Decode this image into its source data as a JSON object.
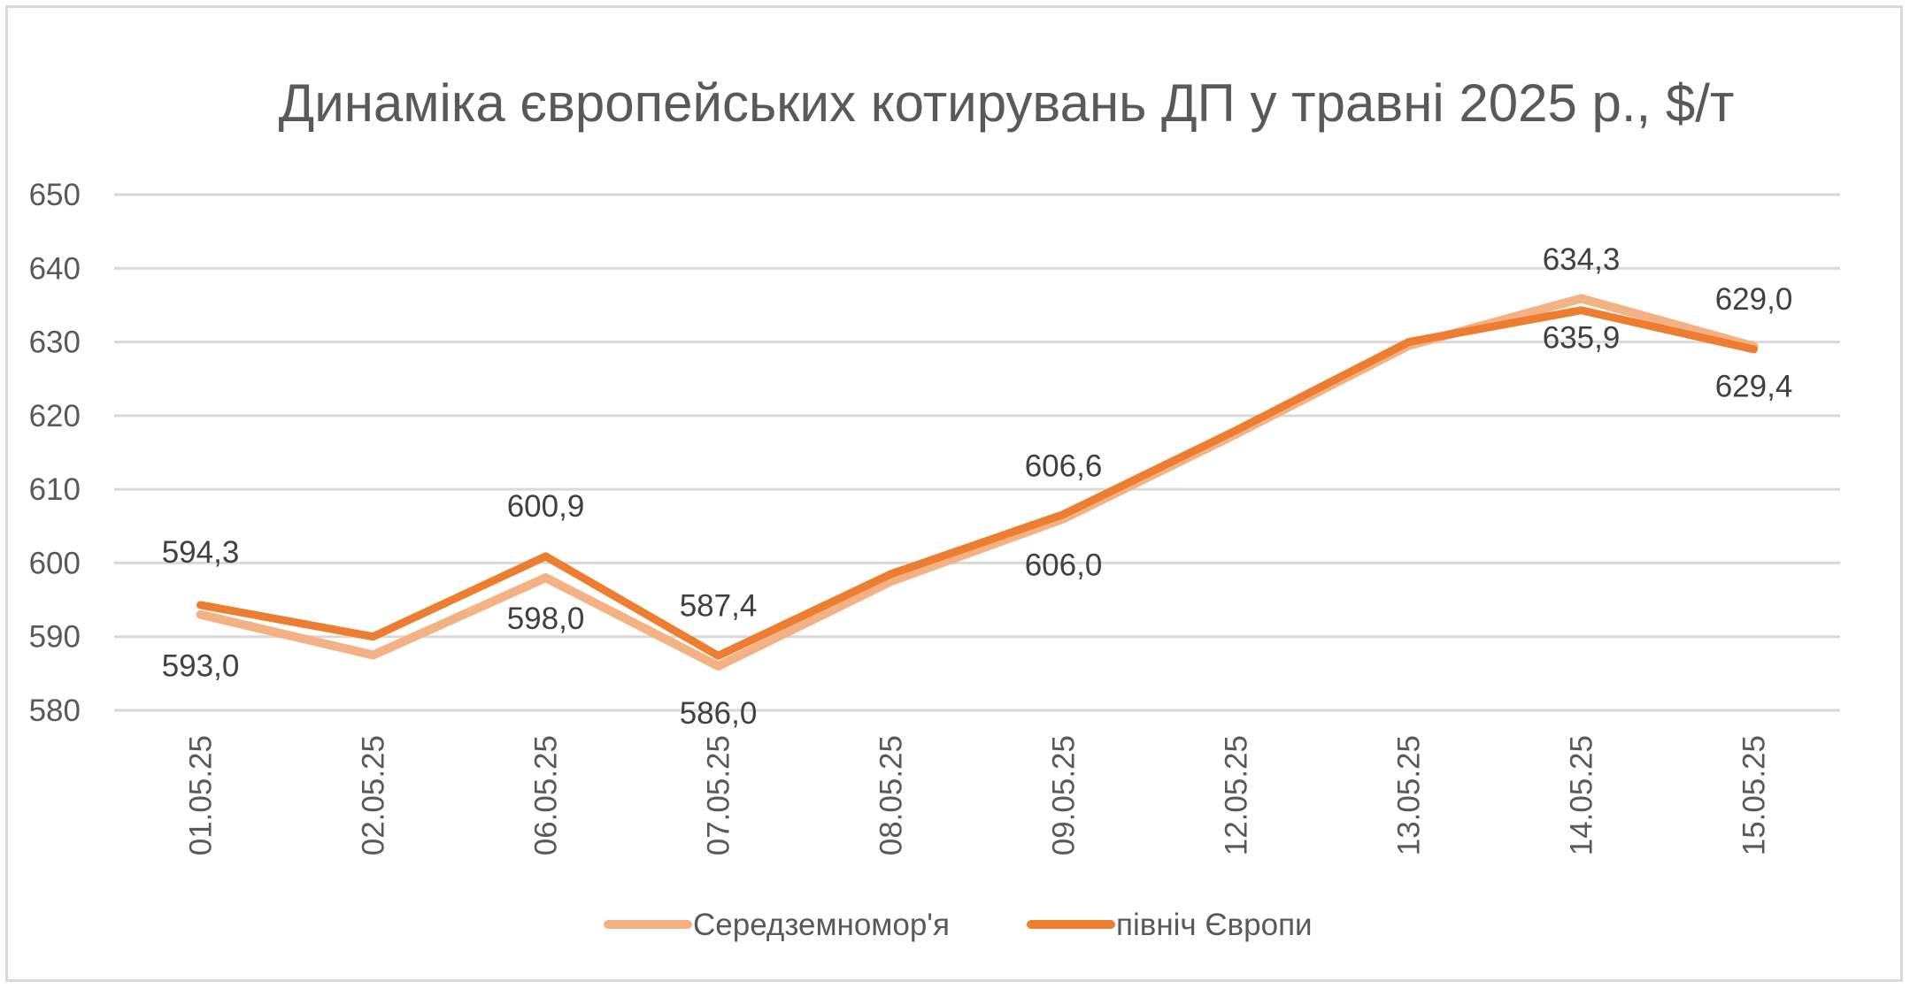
{
  "chart_data": {
    "type": "line",
    "title": "Динаміка європейських котирувань ДП у травні 2025 р., $/т",
    "xlabel": "",
    "ylabel": "",
    "ylim": [
      580,
      650
    ],
    "yticks": [
      580,
      590,
      600,
      610,
      620,
      630,
      640,
      650
    ],
    "grid": true,
    "legend_position": "bottom",
    "categories": [
      "01.05.25",
      "02.05.25",
      "06.05.25",
      "07.05.25",
      "08.05.25",
      "09.05.25",
      "12.05.25",
      "13.05.25",
      "14.05.25",
      "15.05.25"
    ],
    "series": [
      {
        "name": "Середземномор'я",
        "color": "#f4b183",
        "values": [
          593.0,
          587.5,
          598.0,
          586.0,
          597.5,
          606.0,
          617.5,
          629.5,
          635.9,
          629.4
        ],
        "labels": [
          "593,0",
          "",
          "598,0",
          "586,0",
          "",
          "606,0",
          "",
          "",
          "635,9",
          "629,4"
        ]
      },
      {
        "name": "північ Європи",
        "color": "#ed7d31",
        "values": [
          594.3,
          590.0,
          600.9,
          587.4,
          598.5,
          606.6,
          618.0,
          630.0,
          634.3,
          629.0
        ],
        "labels": [
          "594,3",
          "",
          "600,9",
          "587,4",
          "",
          "606,6",
          "",
          "",
          "634,3",
          "629,0"
        ]
      }
    ]
  }
}
